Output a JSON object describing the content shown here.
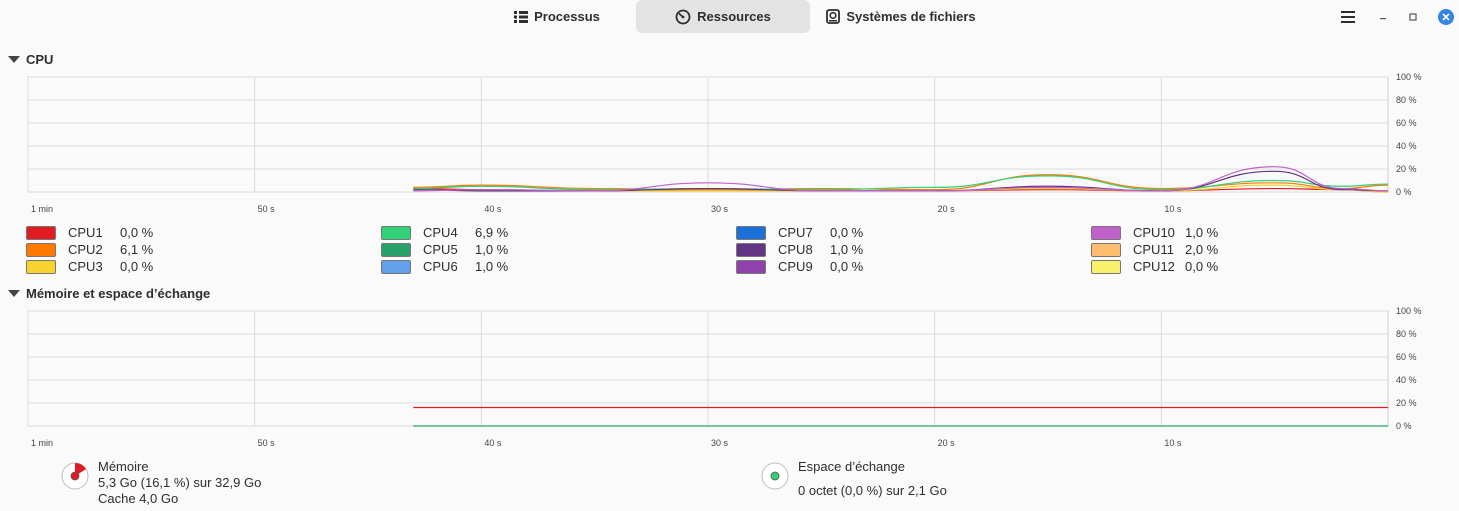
{
  "header": {
    "tabs": [
      {
        "label": "Processus",
        "icon": "list-icon",
        "active": false
      },
      {
        "label": "Ressources",
        "icon": "gauge-icon",
        "active": true
      },
      {
        "label": "Systèmes de fichiers",
        "icon": "disk-icon",
        "active": false
      }
    ],
    "window_buttons": [
      "menu-icon",
      "minimize-icon",
      "maximize-icon",
      "close-icon"
    ],
    "accent": "#3584e4"
  },
  "cpu": {
    "title": "CPU",
    "y_ticks": [
      "100 %",
      "80 %",
      "60 %",
      "40 %",
      "20 %",
      "0 %"
    ],
    "x_ticks": [
      "1 min",
      "50 s",
      "40 s",
      "30 s",
      "20 s",
      "10 s"
    ],
    "legend": [
      {
        "name": "CPU1",
        "value": "0,0 %",
        "color": "#e01b24"
      },
      {
        "name": "CPU2",
        "value": "6,1 %",
        "color": "#ff7800"
      },
      {
        "name": "CPU3",
        "value": "0,0 %",
        "color": "#f6d32d"
      },
      {
        "name": "CPU4",
        "value": "6,9 %",
        "color": "#33d17a"
      },
      {
        "name": "CPU5",
        "value": "1,0 %",
        "color": "#26a269"
      },
      {
        "name": "CPU6",
        "value": "1,0 %",
        "color": "#62a0ea"
      },
      {
        "name": "CPU7",
        "value": "0,0 %",
        "color": "#1c71d8"
      },
      {
        "name": "CPU8",
        "value": "1,0 %",
        "color": "#613583"
      },
      {
        "name": "CPU9",
        "value": "0,0 %",
        "color": "#9141ac"
      },
      {
        "name": "CPU10",
        "value": "1,0 %",
        "color": "#c061cb"
      },
      {
        "name": "CPU11",
        "value": "2,0 %",
        "color": "#ffbe6f"
      },
      {
        "name": "CPU12",
        "value": "0,0 %",
        "color": "#f9f06b"
      }
    ]
  },
  "chart_data": [
    {
      "type": "line",
      "title": "CPU",
      "ylim": [
        0,
        100
      ],
      "x": [
        -43,
        -40,
        -35,
        -30,
        -25,
        -20,
        -15,
        -10,
        -5,
        -2,
        0
      ],
      "series": [
        {
          "name": "CPU1",
          "values": [
            3,
            2,
            1,
            2,
            1,
            1,
            2,
            1,
            3,
            2,
            0
          ]
        },
        {
          "name": "CPU2",
          "values": [
            4,
            6,
            3,
            2,
            3,
            2,
            15,
            3,
            8,
            3,
            6.1
          ]
        },
        {
          "name": "CPU3",
          "values": [
            2,
            1,
            1,
            1,
            1,
            1,
            3,
            1,
            6,
            2,
            0
          ]
        },
        {
          "name": "CPU4",
          "values": [
            3,
            5,
            2,
            3,
            2,
            4,
            14,
            2,
            10,
            5,
            6.9
          ]
        },
        {
          "name": "CPU8",
          "values": [
            2,
            1,
            1,
            3,
            1,
            1,
            5,
            1,
            18,
            2,
            1
          ]
        },
        {
          "name": "CPU10",
          "values": [
            1,
            2,
            1,
            8,
            1,
            1,
            4,
            1,
            22,
            3,
            1
          ]
        }
      ]
    },
    {
      "type": "line",
      "title": "Mémoire et espace d’échange",
      "ylim": [
        0,
        100
      ],
      "x": [
        -43,
        0
      ],
      "series": [
        {
          "name": "Mémoire",
          "values": [
            16.1,
            16.1
          ]
        },
        {
          "name": "Espace d’échange",
          "values": [
            0,
            0
          ]
        }
      ]
    }
  ],
  "memory": {
    "title": "Mémoire et espace d’échange",
    "mem_label": "Mémoire",
    "mem_detail": "5,3 Go (16,1 %) sur 32,9 Go",
    "mem_cache": "Cache 4,0 Go",
    "mem_percent": 16.1,
    "mem_color": "#e01b24",
    "swap_label": "Espace d’échange",
    "swap_detail": "0 octet (0,0 %) sur 2,1 Go",
    "swap_percent": 0,
    "swap_color": "#26a269"
  }
}
